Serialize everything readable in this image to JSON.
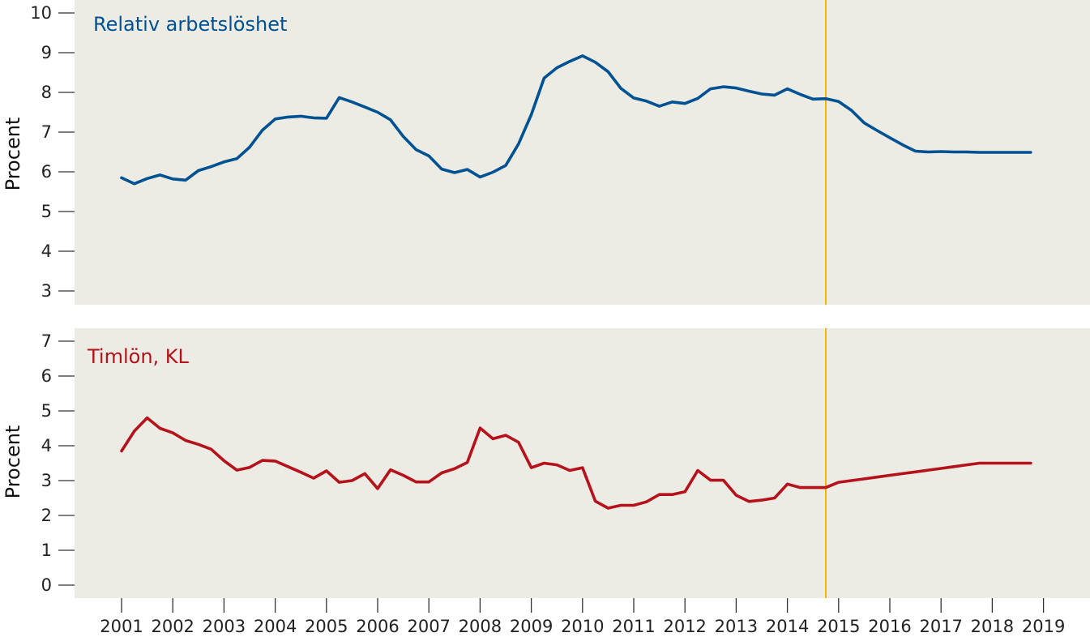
{
  "colors": {
    "panel_bg": "#ecebe4",
    "unemployment": "#005293",
    "wage": "#b5121b",
    "forecast_line": "#f5b800",
    "axis": "#333333"
  },
  "chart_data": [
    {
      "type": "line",
      "title": "Relativ arbetslöshet",
      "ylabel": "Procent",
      "ylim": [
        2.6,
        10
      ],
      "yticks": [
        "3",
        "4",
        "5",
        "6",
        "7",
        "8",
        "9",
        "10"
      ],
      "forecast_start": 2014.75,
      "series": [
        {
          "x": [
            2001.0,
            2001.25,
            2001.5,
            2001.75,
            2002.0,
            2002.25,
            2002.5,
            2002.75,
            2003.0,
            2003.25,
            2003.5,
            2003.75,
            2004.0,
            2004.25,
            2004.5,
            2004.75,
            2005.0,
            2005.25,
            2005.5,
            2005.75,
            2006.0,
            2006.25,
            2006.5,
            2006.75,
            2007.0,
            2007.25,
            2007.5,
            2007.75,
            2008.0,
            2008.25,
            2008.5,
            2008.75,
            2009.0,
            2009.25,
            2009.5,
            2009.75,
            2010.0,
            2010.25,
            2010.5,
            2010.75,
            2011.0,
            2011.25,
            2011.5,
            2011.75,
            2012.0,
            2012.25,
            2012.5,
            2012.75,
            2013.0,
            2013.25,
            2013.5,
            2013.75,
            2014.0,
            2014.25,
            2014.5,
            2014.75,
            2015.0,
            2015.25,
            2015.5,
            2015.75,
            2016.0,
            2016.25,
            2016.5,
            2016.75,
            2017.0,
            2017.25,
            2017.5,
            2017.75,
            2018.0,
            2018.25,
            2018.5,
            2018.75
          ],
          "values": [
            5.85,
            5.7,
            5.83,
            5.92,
            5.82,
            5.79,
            6.03,
            6.13,
            6.25,
            6.33,
            6.62,
            7.05,
            7.33,
            7.38,
            7.4,
            7.36,
            7.35,
            7.87,
            7.76,
            7.63,
            7.5,
            7.31,
            6.89,
            6.56,
            6.4,
            6.07,
            5.98,
            6.06,
            5.87,
            5.99,
            6.16,
            6.7,
            7.44,
            8.36,
            8.62,
            8.78,
            8.92,
            8.76,
            8.52,
            8.1,
            7.86,
            7.78,
            7.65,
            7.76,
            7.72,
            7.85,
            8.09,
            8.14,
            8.11,
            8.03,
            7.96,
            7.93,
            8.09,
            7.95,
            7.83,
            7.84,
            7.77,
            7.55,
            7.23,
            7.04,
            6.86,
            6.68,
            6.52,
            6.5,
            6.51,
            6.5,
            6.5,
            6.49,
            6.49,
            6.49,
            6.49,
            6.49
          ]
        }
      ]
    },
    {
      "type": "line",
      "title": "Timlön, KL",
      "ylabel": "Procent",
      "ylim": [
        -0.3,
        7.3
      ],
      "yticks": [
        "0",
        "1",
        "2",
        "3",
        "4",
        "5",
        "6",
        "7"
      ],
      "forecast_start": 2014.75,
      "series": [
        {
          "x": [
            2001.0,
            2001.25,
            2001.5,
            2001.75,
            2002.0,
            2002.25,
            2002.5,
            2002.75,
            2003.0,
            2003.25,
            2003.5,
            2003.75,
            2004.0,
            2004.25,
            2004.5,
            2004.75,
            2005.0,
            2005.25,
            2005.5,
            2005.75,
            2006.0,
            2006.25,
            2006.5,
            2006.75,
            2007.0,
            2007.25,
            2007.5,
            2007.75,
            2008.0,
            2008.25,
            2008.5,
            2008.75,
            2009.0,
            2009.25,
            2009.5,
            2009.75,
            2010.0,
            2010.25,
            2010.5,
            2010.75,
            2011.0,
            2011.25,
            2011.5,
            2011.75,
            2012.0,
            2012.25,
            2012.5,
            2012.75,
            2013.0,
            2013.25,
            2013.5,
            2013.75,
            2014.0,
            2014.25,
            2014.5,
            2014.75,
            2015.0,
            2015.25,
            2015.5,
            2015.75,
            2016.0,
            2016.25,
            2016.5,
            2016.75,
            2017.0,
            2017.25,
            2017.5,
            2017.75,
            2018.0,
            2018.25,
            2018.5,
            2018.75
          ],
          "values": [
            3.85,
            4.42,
            4.8,
            4.5,
            4.37,
            4.15,
            4.04,
            3.9,
            3.57,
            3.3,
            3.38,
            3.58,
            3.56,
            3.4,
            3.24,
            3.07,
            3.28,
            2.95,
            3.0,
            3.2,
            2.77,
            3.31,
            3.15,
            2.96,
            2.96,
            3.22,
            3.34,
            3.52,
            4.51,
            4.2,
            4.3,
            4.1,
            3.37,
            3.5,
            3.45,
            3.29,
            3.37,
            2.41,
            2.21,
            2.29,
            2.29,
            2.39,
            2.6,
            2.6,
            2.68,
            3.29,
            3.01,
            3.01,
            2.58,
            2.4,
            2.44,
            2.5,
            2.9,
            2.8,
            2.8,
            2.8,
            2.95,
            3.0,
            3.05,
            3.1,
            3.15,
            3.2,
            3.25,
            3.3,
            3.35,
            3.4,
            3.45,
            3.5,
            3.5,
            3.5,
            3.5,
            3.5
          ]
        }
      ]
    }
  ],
  "x_axis": {
    "labels": [
      "2001",
      "2002",
      "2003",
      "2004",
      "2005",
      "2006",
      "2007",
      "2008",
      "2009",
      "2010",
      "2011",
      "2012",
      "2013",
      "2014",
      "2015",
      "2016",
      "2017",
      "2018",
      "2019"
    ]
  }
}
